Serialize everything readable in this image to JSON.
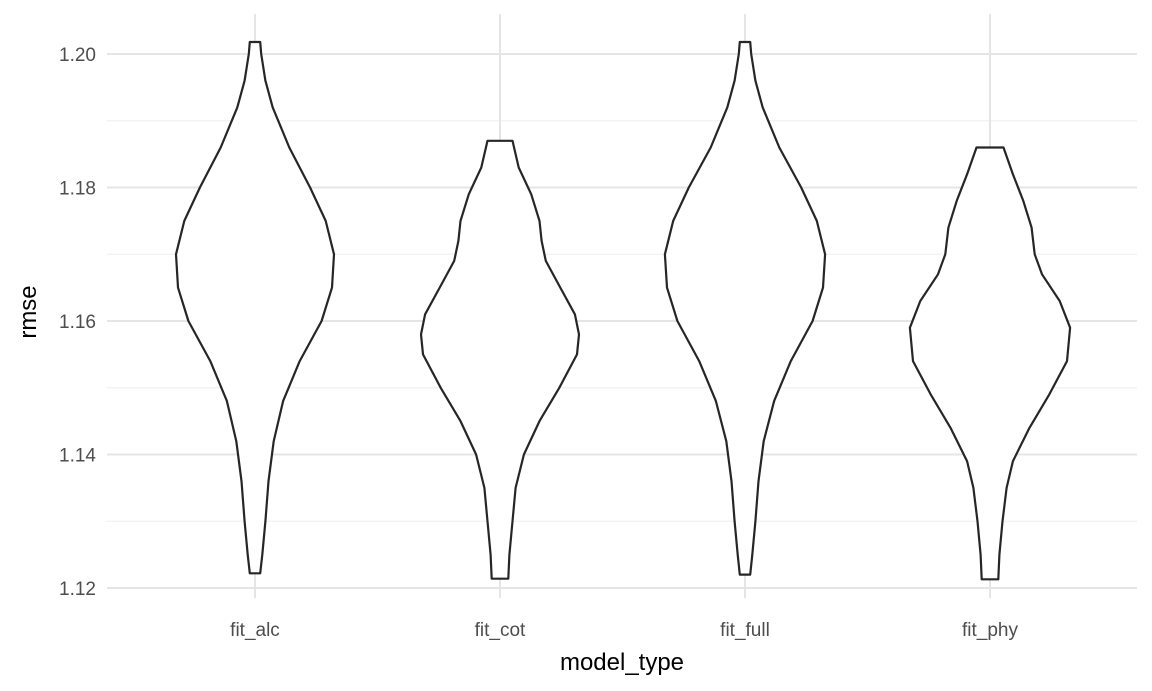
{
  "chart_data": {
    "type": "violin",
    "title": "",
    "xlabel": "model_type",
    "ylabel": "rmse",
    "categories": [
      "fit_alc",
      "fit_cot",
      "fit_full",
      "fit_phy"
    ],
    "ylim": [
      1.1155,
      1.2055
    ],
    "yticks": [
      1.12,
      1.14,
      1.16,
      1.18,
      1.2
    ],
    "ytick_labels": [
      "1.12",
      "1.14",
      "1.16",
      "1.18",
      "1.20"
    ],
    "grid": true,
    "theme": "minimal",
    "colors": {
      "outline": "#262626",
      "grid_major": "#e5e5e5",
      "grid_minor": "#f0f0f0",
      "fill": "#ffffff"
    },
    "violins": [
      {
        "category": "fit_alc",
        "min": 1.1222,
        "max": 1.2018,
        "density": [
          {
            "y": 1.1222,
            "w": 0.05
          },
          {
            "y": 1.125,
            "w": 0.07
          },
          {
            "y": 1.13,
            "w": 0.1
          },
          {
            "y": 1.136,
            "w": 0.13
          },
          {
            "y": 1.142,
            "w": 0.18
          },
          {
            "y": 1.148,
            "w": 0.27
          },
          {
            "y": 1.154,
            "w": 0.43
          },
          {
            "y": 1.16,
            "w": 0.64
          },
          {
            "y": 1.165,
            "w": 0.74
          },
          {
            "y": 1.17,
            "w": 0.76
          },
          {
            "y": 1.175,
            "w": 0.68
          },
          {
            "y": 1.18,
            "w": 0.53
          },
          {
            "y": 1.186,
            "w": 0.33
          },
          {
            "y": 1.192,
            "w": 0.17
          },
          {
            "y": 1.196,
            "w": 0.1
          },
          {
            "y": 1.2,
            "w": 0.06
          },
          {
            "y": 1.2018,
            "w": 0.05
          }
        ]
      },
      {
        "category": "fit_cot",
        "min": 1.1214,
        "max": 1.187,
        "density": [
          {
            "y": 1.1214,
            "w": 0.08
          },
          {
            "y": 1.125,
            "w": 0.09
          },
          {
            "y": 1.13,
            "w": 0.12
          },
          {
            "y": 1.135,
            "w": 0.15
          },
          {
            "y": 1.14,
            "w": 0.23
          },
          {
            "y": 1.145,
            "w": 0.38
          },
          {
            "y": 1.15,
            "w": 0.57
          },
          {
            "y": 1.155,
            "w": 0.74
          },
          {
            "y": 1.158,
            "w": 0.76
          },
          {
            "y": 1.161,
            "w": 0.72
          },
          {
            "y": 1.165,
            "w": 0.58
          },
          {
            "y": 1.169,
            "w": 0.44
          },
          {
            "y": 1.172,
            "w": 0.4
          },
          {
            "y": 1.175,
            "w": 0.38
          },
          {
            "y": 1.179,
            "w": 0.3
          },
          {
            "y": 1.183,
            "w": 0.18
          },
          {
            "y": 1.187,
            "w": 0.12
          }
        ]
      },
      {
        "category": "fit_full",
        "min": 1.122,
        "max": 1.2018,
        "density": [
          {
            "y": 1.122,
            "w": 0.05
          },
          {
            "y": 1.125,
            "w": 0.07
          },
          {
            "y": 1.13,
            "w": 0.1
          },
          {
            "y": 1.136,
            "w": 0.13
          },
          {
            "y": 1.142,
            "w": 0.18
          },
          {
            "y": 1.148,
            "w": 0.28
          },
          {
            "y": 1.154,
            "w": 0.44
          },
          {
            "y": 1.16,
            "w": 0.65
          },
          {
            "y": 1.165,
            "w": 0.75
          },
          {
            "y": 1.17,
            "w": 0.77
          },
          {
            "y": 1.175,
            "w": 0.69
          },
          {
            "y": 1.18,
            "w": 0.54
          },
          {
            "y": 1.186,
            "w": 0.33
          },
          {
            "y": 1.192,
            "w": 0.17
          },
          {
            "y": 1.196,
            "w": 0.1
          },
          {
            "y": 1.2,
            "w": 0.06
          },
          {
            "y": 1.2018,
            "w": 0.05
          }
        ]
      },
      {
        "category": "fit_phy",
        "min": 1.1213,
        "max": 1.186,
        "density": [
          {
            "y": 1.1213,
            "w": 0.08
          },
          {
            "y": 1.125,
            "w": 0.09
          },
          {
            "y": 1.13,
            "w": 0.12
          },
          {
            "y": 1.135,
            "w": 0.16
          },
          {
            "y": 1.139,
            "w": 0.22
          },
          {
            "y": 1.144,
            "w": 0.38
          },
          {
            "y": 1.149,
            "w": 0.57
          },
          {
            "y": 1.154,
            "w": 0.74
          },
          {
            "y": 1.159,
            "w": 0.77
          },
          {
            "y": 1.163,
            "w": 0.67
          },
          {
            "y": 1.167,
            "w": 0.5
          },
          {
            "y": 1.17,
            "w": 0.43
          },
          {
            "y": 1.174,
            "w": 0.4
          },
          {
            "y": 1.178,
            "w": 0.32
          },
          {
            "y": 1.182,
            "w": 0.22
          },
          {
            "y": 1.186,
            "w": 0.13
          }
        ]
      }
    ]
  }
}
